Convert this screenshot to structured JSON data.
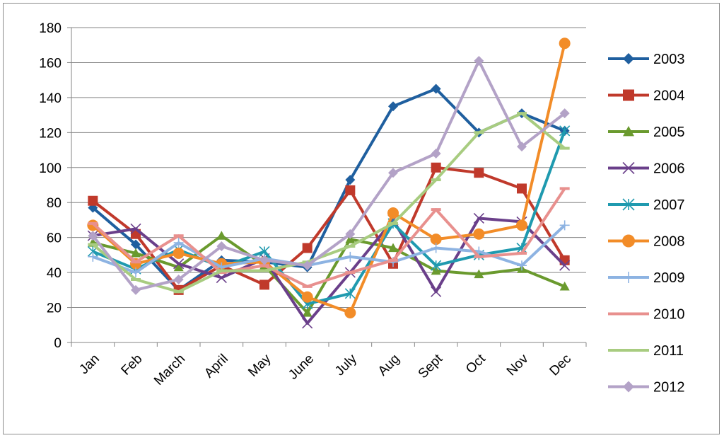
{
  "chart_data": {
    "type": "line",
    "title": "",
    "xlabel": "",
    "ylabel": "",
    "ylim": [
      0,
      180
    ],
    "yticks": [
      0,
      20,
      40,
      60,
      80,
      100,
      120,
      140,
      160,
      180
    ],
    "grid": true,
    "legend_position": "right",
    "categories": [
      "Jan",
      "Feb",
      "March",
      "April",
      "May",
      "June",
      "July",
      "Aug",
      "Sept",
      "Oct",
      "Nov",
      "Dec"
    ],
    "series": [
      {
        "name": "2003",
        "color": "#1F5F9F",
        "marker": "diamond",
        "values": [
          77,
          56,
          30,
          47,
          46,
          43,
          93,
          135,
          145,
          120,
          131,
          121
        ]
      },
      {
        "name": "2004",
        "color": "#C0392B",
        "marker": "square",
        "values": [
          81,
          62,
          30,
          44,
          33,
          54,
          87,
          45,
          100,
          97,
          88,
          47
        ]
      },
      {
        "name": "2005",
        "color": "#6A9A2E",
        "marker": "triangle",
        "values": [
          57,
          51,
          43,
          61,
          44,
          17,
          59,
          54,
          41,
          39,
          42,
          32
        ]
      },
      {
        "name": "2006",
        "color": "#6A3F8A",
        "marker": "x",
        "values": [
          61,
          65,
          45,
          37,
          48,
          11,
          40,
          70,
          29,
          71,
          69,
          44
        ]
      },
      {
        "name": "2007",
        "color": "#1F9AAF",
        "marker": "asterisk",
        "values": [
          52,
          42,
          53,
          43,
          52,
          22,
          28,
          68,
          44,
          50,
          54,
          121
        ]
      },
      {
        "name": "2008",
        "color": "#F28C28",
        "marker": "circle",
        "values": [
          67,
          45,
          51,
          45,
          46,
          26,
          17,
          74,
          59,
          62,
          67,
          171
        ]
      },
      {
        "name": "2009",
        "color": "#8DB3E2",
        "marker": "plus",
        "values": [
          49,
          40,
          57,
          43,
          48,
          44,
          49,
          46,
          54,
          52,
          44,
          67
        ]
      },
      {
        "name": "2010",
        "color": "#E8908E",
        "marker": "dash",
        "values": [
          68,
          46,
          61,
          40,
          44,
          32,
          40,
          47,
          76,
          49,
          51,
          88
        ]
      },
      {
        "name": "2011",
        "color": "#A8CC80",
        "marker": "dash",
        "values": [
          56,
          36,
          29,
          41,
          41,
          46,
          55,
          68,
          93,
          120,
          131,
          111
        ]
      },
      {
        "name": "2012",
        "color": "#B3A2C7",
        "marker": "diamond",
        "values": [
          61,
          30,
          36,
          55,
          47,
          44,
          62,
          97,
          108,
          161,
          112,
          131
        ]
      }
    ]
  }
}
